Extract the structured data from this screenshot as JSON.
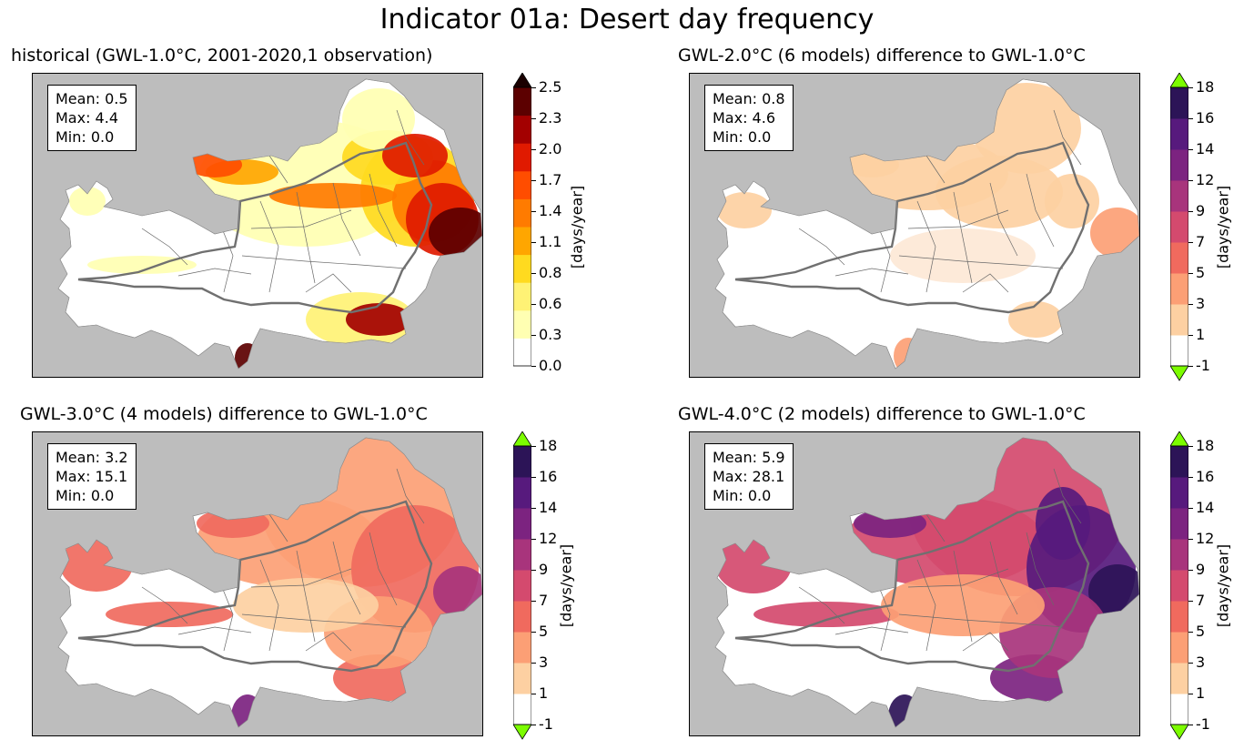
{
  "title": "Indicator 01a: Desert day frequency",
  "colors": {
    "background_gray": "#bdbdbd",
    "hist_scale": [
      "#ffffff",
      "#ffffb2",
      "#fff275",
      "#ffda1f",
      "#ffa600",
      "#ff7b00",
      "#ff4d00",
      "#e01a00",
      "#a30000",
      "#5c0000"
    ],
    "hist_over": "#1a0000",
    "diff_scale": [
      "#ffffff",
      "#fdd0a2",
      "#fc9f75",
      "#f06a5e",
      "#d44a6e",
      "#a8347c",
      "#7c2380",
      "#571a7d",
      "#2c1457"
    ],
    "diff_over": "#0b0a1a",
    "extend_green": "#7cfc00"
  },
  "panels": [
    {
      "title": "historical (GWL-1.0°C, 2001-2020,1 observation)",
      "stats": {
        "mean": "Mean: 0.5",
        "max": "Max: 4.4",
        "min": "Min: 0.0"
      },
      "colorbar": {
        "ticks": [
          "2.5",
          "2.3",
          "2.0",
          "1.7",
          "1.4",
          "1.1",
          "0.8",
          "0.6",
          "0.3",
          "0.0"
        ],
        "label": "[days/year]",
        "extend": "max"
      }
    },
    {
      "title": "GWL-2.0°C (6 models) difference to GWL-1.0°C",
      "stats": {
        "mean": "Mean: 0.8",
        "max": "Max: 4.6",
        "min": "Min: 0.0"
      },
      "colorbar": {
        "ticks": [
          "18",
          "16",
          "14",
          "12",
          "9",
          "7",
          "5",
          "3",
          "1",
          "-1"
        ],
        "label": "[days/year]",
        "extend": "both"
      }
    },
    {
      "title": "GWL-3.0°C (4 models) difference to GWL-1.0°C",
      "stats": {
        "mean": "Mean: 3.2",
        "max": "Max: 15.1",
        "min": "Min: 0.0"
      },
      "colorbar": {
        "ticks": [
          "18",
          "16",
          "14",
          "12",
          "9",
          "7",
          "5",
          "3",
          "1",
          "-1"
        ],
        "label": "[days/year]",
        "extend": "both"
      }
    },
    {
      "title": "GWL-4.0°C (2 models) difference to GWL-1.0°C",
      "stats": {
        "mean": "Mean: 5.9",
        "max": "Max: 28.1",
        "min": "Min: 0.0"
      },
      "colorbar": {
        "ticks": [
          "18",
          "16",
          "14",
          "12",
          "9",
          "7",
          "5",
          "3",
          "1",
          "-1"
        ],
        "label": "[days/year]",
        "extend": "both"
      }
    }
  ]
}
